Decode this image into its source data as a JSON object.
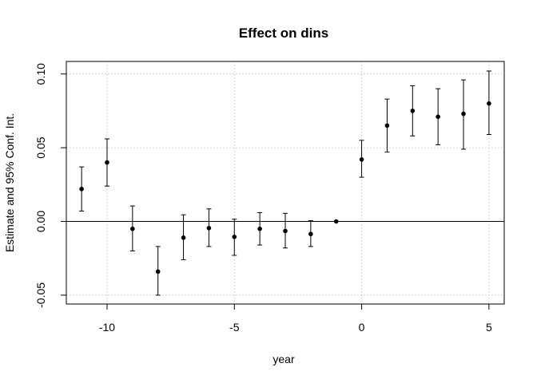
{
  "chart_data": {
    "type": "scatter",
    "title": "Effect on dins",
    "xlabel": "year",
    "ylabel": "Estimate and 95% Conf. Int.",
    "xlim": [
      -11.6,
      5.6
    ],
    "ylim": [
      -0.056,
      0.1085
    ],
    "x_ticks": [
      -10,
      -5,
      0,
      5
    ],
    "x_tick_labels": [
      "-10",
      "-5",
      "0",
      "5"
    ],
    "y_ticks": [
      -0.05,
      0.0,
      0.05,
      0.1
    ],
    "y_tick_labels": [
      "-0.05",
      "0.00",
      "0.05",
      "0.10"
    ],
    "grid": true,
    "reference_line_y": 0,
    "series": [
      {
        "x": [
          -11,
          -10,
          -9,
          -8,
          -7,
          -6,
          -5,
          -4,
          -3,
          -2,
          -1,
          0,
          1,
          2,
          3,
          4,
          5
        ],
        "estimate": [
          0.022,
          0.04,
          -0.005,
          -0.034,
          -0.011,
          -0.0045,
          -0.0105,
          -0.005,
          -0.0065,
          -0.0085,
          0.0,
          0.042,
          0.065,
          0.075,
          0.071,
          0.073,
          0.08
        ],
        "lower": [
          0.007,
          0.024,
          -0.02,
          -0.05,
          -0.026,
          -0.017,
          -0.023,
          -0.016,
          -0.018,
          -0.017,
          0.0,
          0.03,
          0.047,
          0.058,
          0.052,
          0.049,
          0.059
        ],
        "upper": [
          0.037,
          0.056,
          0.0105,
          -0.017,
          0.0045,
          0.0085,
          0.0015,
          0.006,
          0.0055,
          0.0005,
          0.0,
          0.055,
          0.083,
          0.092,
          0.09,
          0.096,
          0.102
        ]
      }
    ]
  }
}
